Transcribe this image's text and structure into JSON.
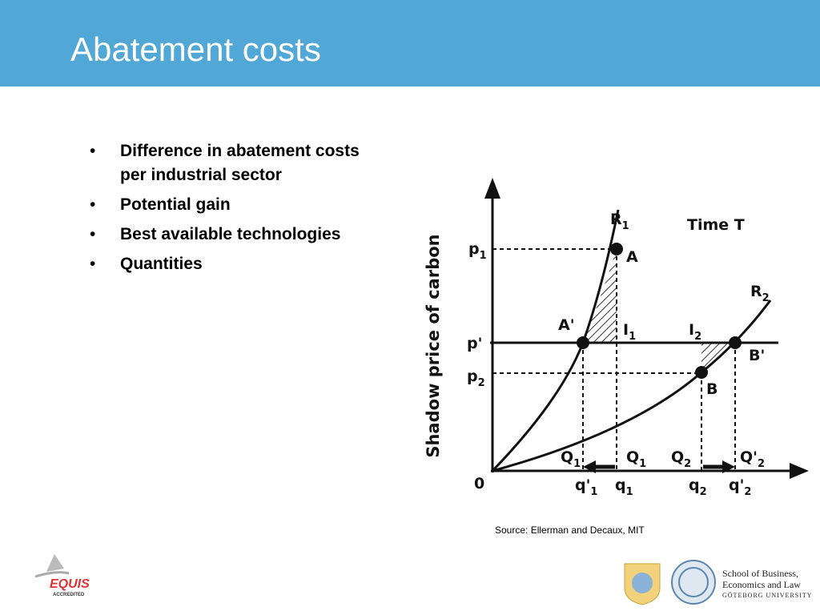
{
  "header": {
    "title": "Abatement costs"
  },
  "bullets": [
    "Difference in abatement costs per industrial sector",
    "Potential gain",
    "Best available technologies",
    "Quantities"
  ],
  "diagram": {
    "y_axis_label": "Shadow price of carbon",
    "labels": [
      {
        "main": "R",
        "sub": "1"
      },
      {
        "main": "Time T"
      },
      {
        "main": "p",
        "sub": "1"
      },
      {
        "main": "A"
      },
      {
        "main": "R",
        "sub": "2"
      },
      {
        "main": "A'"
      },
      {
        "main": "I",
        "sub": "1"
      },
      {
        "main": "I",
        "sub": "2"
      },
      {
        "main": "p'"
      },
      {
        "main": "B'"
      },
      {
        "main": "p",
        "sub": "2"
      },
      {
        "main": "B"
      },
      {
        "main": "Q",
        "sub": "1"
      },
      {
        "main": "Q",
        "sub": "1"
      },
      {
        "main": "Q",
        "sub": "2"
      },
      {
        "main": "Q'",
        "sub": "2"
      },
      {
        "main": "0"
      },
      {
        "main": "q'",
        "sub": "1"
      },
      {
        "main": "q",
        "sub": "1"
      },
      {
        "main": "q",
        "sub": "2"
      },
      {
        "main": "q'",
        "sub": "2"
      }
    ]
  },
  "source": "Source: Ellerman and Decaux, MIT",
  "footer": {
    "equis": "EQUIS",
    "equis_sub": "ACCREDITED",
    "school_line1": "School of Business,",
    "school_line2": "Economics and Law",
    "university": "GÖTEBORG UNIVERSITY"
  }
}
